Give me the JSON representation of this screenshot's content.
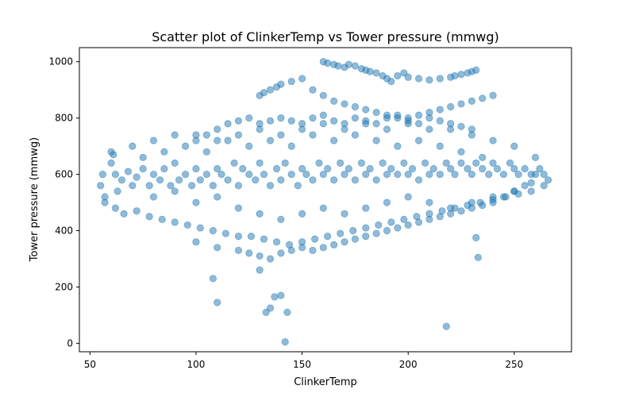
{
  "chart_data": {
    "type": "scatter",
    "title": "Scatter plot of ClinkerTemp vs Tower pressure (mmwg)",
    "xlabel": "ClinkerTemp",
    "ylabel": "Tower pressure (mmwg)",
    "xlim": [
      45,
      277
    ],
    "ylim": [
      -30,
      1050
    ],
    "x_ticks": [
      50,
      100,
      150,
      200,
      250
    ],
    "y_ticks": [
      0,
      200,
      400,
      600,
      800,
      1000
    ],
    "grid": false,
    "legend": "none",
    "marker_color": "#1f77b4",
    "marker_alpha": 0.5,
    "series": [
      {
        "x": [
          55,
          56,
          57,
          60,
          61,
          62,
          63,
          65,
          68,
          70,
          72,
          75,
          78,
          80,
          83,
          85,
          88,
          90,
          92,
          95,
          98,
          100,
          102,
          105,
          108,
          110,
          112,
          115,
          118,
          120,
          122,
          125,
          128,
          130,
          132,
          135,
          138,
          140,
          142,
          145,
          148,
          150,
          152,
          155,
          158,
          160,
          162,
          165,
          168,
          170,
          172,
          175,
          178,
          180,
          182,
          185,
          188,
          190,
          192,
          195,
          198,
          200,
          202,
          205,
          208,
          210,
          212,
          215,
          218,
          220,
          222,
          225,
          228,
          230,
          232,
          235,
          238,
          240,
          242,
          245,
          248,
          250,
          252,
          255,
          258,
          260,
          262,
          264,
          266,
          57,
          62,
          66,
          72,
          78,
          84,
          90,
          96,
          102,
          108,
          114,
          120,
          126,
          132,
          138,
          144,
          150,
          156,
          162,
          168,
          174,
          180,
          186,
          192,
          198,
          204,
          210,
          216,
          222,
          228,
          234,
          240,
          246,
          252,
          258,
          264,
          60,
          70,
          80,
          90,
          100,
          110,
          120,
          130,
          140,
          150,
          160,
          170,
          180,
          190,
          200,
          210,
          220,
          230,
          240,
          250,
          260,
          80,
          90,
          100,
          110,
          120,
          130,
          140,
          150,
          160,
          170,
          180,
          190,
          200,
          210,
          220,
          230,
          240,
          250,
          75,
          85,
          95,
          105,
          115,
          125,
          135,
          145,
          155,
          165,
          175,
          185,
          195,
          205,
          215,
          225,
          235,
          100,
          110,
          120,
          125,
          130,
          135,
          140,
          145,
          150,
          155,
          160,
          165,
          170,
          175,
          180,
          185,
          190,
          195,
          200,
          205,
          210,
          215,
          220,
          225,
          230,
          235,
          240,
          245,
          250,
          255,
          258,
          160,
          162,
          165,
          167,
          170,
          172,
          175,
          178,
          180,
          182,
          185,
          188,
          190,
          192,
          195,
          198,
          200,
          205,
          210,
          215,
          220,
          222,
          225,
          228,
          230,
          232,
          130,
          132,
          135,
          138,
          140,
          145,
          150,
          155,
          160,
          165,
          170,
          175,
          180,
          185,
          190,
          195,
          200,
          205,
          210,
          215,
          220,
          225,
          230,
          235,
          240,
          100,
          105,
          110,
          115,
          120,
          125,
          130,
          135,
          140,
          145,
          150,
          155,
          160,
          165,
          170,
          175,
          180,
          185,
          190,
          195,
          200,
          205,
          210,
          215,
          220,
          225,
          230,
          108,
          110,
          130,
          133,
          135,
          137,
          140,
          142,
          143,
          218,
          233,
          232
        ],
        "y": [
          560,
          600,
          520,
          640,
          670,
          600,
          540,
          580,
          610,
          560,
          590,
          620,
          560,
          600,
          580,
          620,
          560,
          640,
          580,
          600,
          560,
          620,
          580,
          600,
          560,
          620,
          600,
          580,
          640,
          560,
          620,
          600,
          580,
          640,
          600,
          560,
          620,
          580,
          640,
          600,
          560,
          620,
          600,
          580,
          640,
          600,
          620,
          580,
          640,
          600,
          620,
          580,
          640,
          600,
          620,
          580,
          640,
          600,
          620,
          600,
          640,
          600,
          620,
          580,
          640,
          600,
          620,
          600,
          640,
          620,
          600,
          640,
          620,
          600,
          640,
          620,
          600,
          640,
          620,
          600,
          640,
          620,
          600,
          620,
          600,
          600,
          620,
          600,
          580,
          500,
          480,
          460,
          470,
          450,
          440,
          430,
          420,
          410,
          400,
          390,
          380,
          380,
          370,
          360,
          350,
          360,
          370,
          380,
          390,
          400,
          410,
          420,
          430,
          440,
          450,
          460,
          470,
          480,
          490,
          500,
          510,
          520,
          530,
          540,
          560,
          680,
          700,
          720,
          740,
          740,
          720,
          740,
          760,
          740,
          760,
          780,
          760,
          780,
          760,
          780,
          760,
          760,
          740,
          720,
          700,
          660,
          520,
          540,
          500,
          520,
          480,
          460,
          440,
          460,
          480,
          460,
          480,
          500,
          520,
          500,
          480,
          500,
          520,
          540,
          660,
          680,
          700,
          680,
          720,
          700,
          720,
          700,
          740,
          720,
          740,
          720,
          700,
          720,
          700,
          680,
          660,
          360,
          340,
          330,
          320,
          310,
          300,
          320,
          330,
          340,
          330,
          340,
          350,
          360,
          370,
          380,
          390,
          400,
          410,
          420,
          430,
          440,
          450,
          460,
          470,
          480,
          490,
          500,
          520,
          540,
          560,
          570,
          1000,
          995,
          990,
          985,
          980,
          990,
          985,
          975,
          970,
          965,
          960,
          950,
          940,
          930,
          950,
          960,
          945,
          940,
          935,
          940,
          945,
          950,
          955,
          960,
          965,
          970,
          880,
          890,
          900,
          910,
          920,
          930,
          940,
          900,
          880,
          860,
          850,
          840,
          830,
          820,
          810,
          800,
          800,
          810,
          820,
          830,
          840,
          850,
          860,
          870,
          880,
          720,
          740,
          760,
          780,
          790,
          800,
          780,
          790,
          800,
          790,
          780,
          800,
          810,
          790,
          780,
          800,
          790,
          780,
          800,
          810,
          790,
          780,
          800,
          790,
          780,
          770,
          760,
          230,
          145,
          260,
          110,
          125,
          165,
          170,
          5,
          110,
          60,
          305,
          375
        ]
      }
    ]
  }
}
